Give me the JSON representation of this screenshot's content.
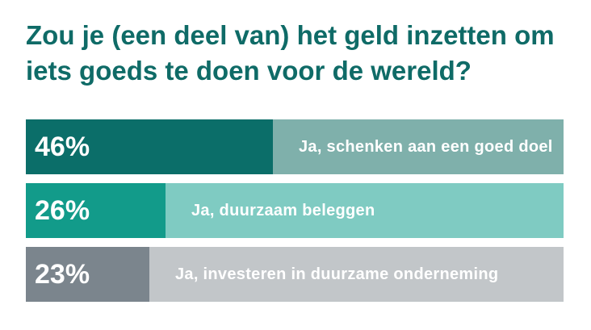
{
  "chart_data": {
    "type": "bar",
    "orientation": "horizontal",
    "title": "Zou je (een deel van) het geld inzetten om iets goeds te doen voor de wereld?",
    "title_lines": [
      "Zou je (een deel van) het geld inzetten om",
      "iets goeds te doen voor de wereld?"
    ],
    "categories": [
      "Ja, schenken aan een goed doel",
      "Ja, duurzaam beleggen",
      "Ja, investeren in duurzame onderneming"
    ],
    "values": [
      46,
      26,
      23
    ],
    "value_labels": [
      "46%",
      "26%",
      "23%"
    ],
    "xlim": [
      0,
      100
    ],
    "unit": "%",
    "colors": {
      "fill": [
        "#0b6e69",
        "#129b8a",
        "#7b858d"
      ],
      "track": [
        "#7fb0ab",
        "#7fcbc2",
        "#c2c6c9"
      ],
      "title": "#0f6b67",
      "text": "#ffffff"
    }
  }
}
